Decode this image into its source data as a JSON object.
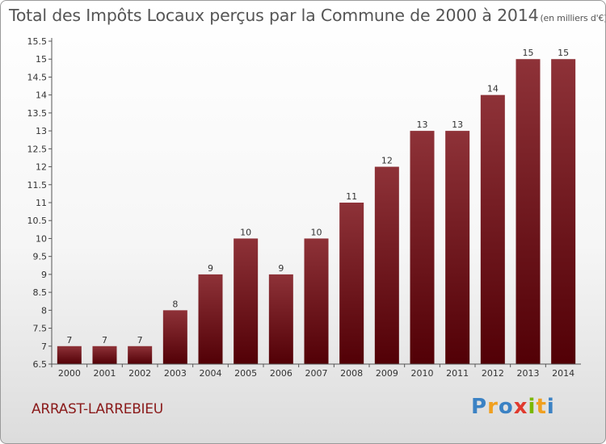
{
  "title": "Total des Impôts Locaux perçus par la Commune de 2000 à 2014",
  "unit": "(en milliers d'€)",
  "commune": "ARRAST-LARREBIEU",
  "logo": {
    "letters": [
      "P",
      "r",
      "o",
      "x",
      "i",
      "t",
      "i"
    ],
    "colors": [
      "#3b82c4",
      "#f0a020",
      "#3b82c4",
      "#e03a2e",
      "#7ab800",
      "#f0a020",
      "#3b82c4"
    ]
  },
  "colors": {
    "bar_top": "#8e3238",
    "bar_bottom": "#520006",
    "axis": "#555555",
    "grid": "#e0e0e0"
  },
  "chart_data": {
    "type": "bar",
    "categories": [
      "2000",
      "2001",
      "2002",
      "2003",
      "2004",
      "2005",
      "2006",
      "2007",
      "2008",
      "2009",
      "2010",
      "2011",
      "2012",
      "2013",
      "2014"
    ],
    "values": [
      7,
      7,
      7,
      8,
      9,
      10,
      9,
      10,
      11,
      12,
      13,
      13,
      14,
      15,
      15
    ],
    "labels": [
      "7",
      "7",
      "7",
      "8",
      "9",
      "10",
      "9",
      "10",
      "11",
      "12",
      "13",
      "13",
      "14",
      "15",
      "15"
    ],
    "yticks": [
      "6.5",
      "7",
      "7.5",
      "8",
      "8.5",
      "9",
      "9.5",
      "10",
      "10.5",
      "11",
      "11.5",
      "12",
      "12.5",
      "13",
      "13.5",
      "14",
      "14.5",
      "15",
      "15.5"
    ],
    "ylim": [
      6.5,
      15.5
    ],
    "title": "Total des Impôts Locaux perçus par la Commune de 2000 à 2014",
    "xlabel": "",
    "ylabel": ""
  }
}
